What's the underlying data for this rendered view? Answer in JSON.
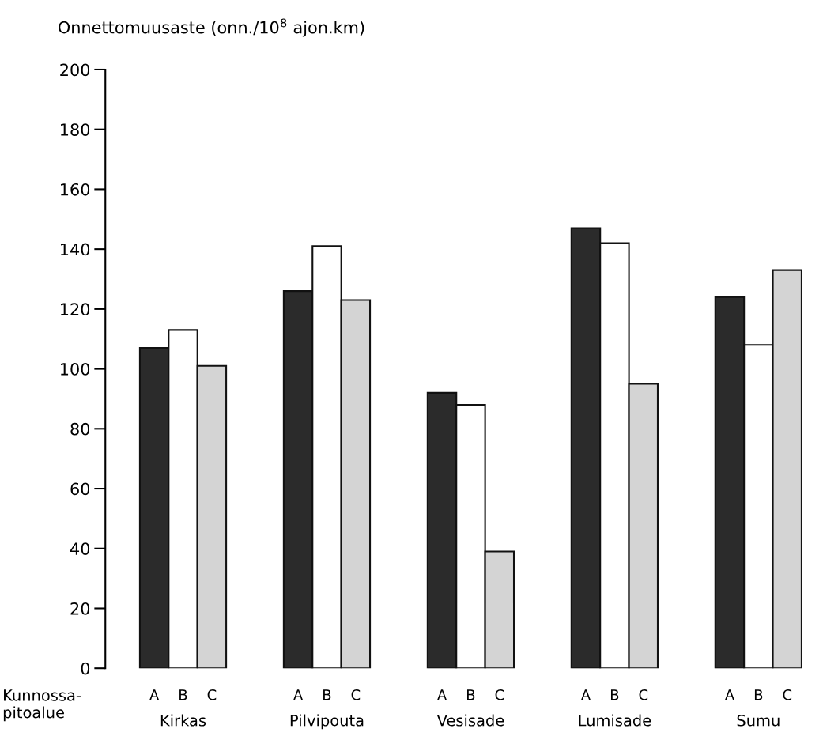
{
  "chart_data": {
    "type": "bar",
    "ylabel": "Onnettomuusaste (onn./10$^{8}$ ajon.km)",
    "xlabel": "Kunnossa-\npitoalue",
    "categories": [
      "Kirkas",
      "Pilvipouta",
      "Vesisade",
      "Lumisade",
      "Sumu"
    ],
    "series": [
      {
        "name": "A",
        "color": "#2b2b2b",
        "values": [
          107,
          126,
          92,
          147,
          124
        ]
      },
      {
        "name": "B",
        "color": "#ffffff",
        "values": [
          113,
          141,
          88,
          142,
          108
        ]
      },
      {
        "name": "C",
        "color": "#d4d4d4",
        "values": [
          101,
          123,
          39,
          95,
          133
        ]
      }
    ],
    "ylim": [
      0,
      200
    ],
    "yticks": [
      0,
      20,
      40,
      60,
      80,
      100,
      120,
      140,
      160,
      180,
      200
    ],
    "grid": false,
    "legend": false
  }
}
